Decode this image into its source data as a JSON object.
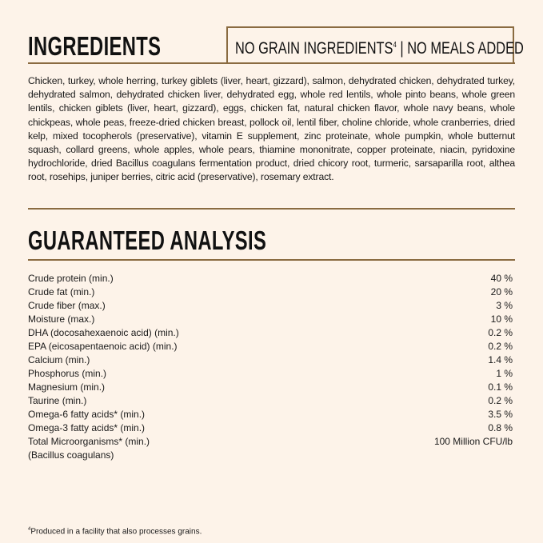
{
  "ingredients": {
    "title": "INGREDIENTS",
    "badge_text": "NO GRAIN INGREDIENTS",
    "badge_sup": "4",
    "badge_text2": " | NO MEALS ADDED",
    "text": "Chicken, turkey, whole herring, turkey giblets (liver, heart, gizzard), salmon, dehydrated chicken, dehydrated turkey, dehydrated salmon, dehydrated chicken liver, dehydrated egg, whole red lentils, whole pinto beans, whole green lentils, chicken giblets (liver, heart, gizzard), eggs, chicken fat, natural chicken flavor, whole navy beans, whole chickpeas, whole peas, freeze-dried chicken breast, pollock oil, lentil fiber, choline chloride, whole cranberries, dried kelp, mixed tocopherols (preservative), vitamin E supplement, zinc proteinate, whole pumpkin, whole butternut squash, collard greens, whole apples, whole pears, thiamine mononitrate, copper proteinate, niacin, pyridoxine hydrochloride, dried Bacillus coagulans fermentation product, dried chicory root, turmeric, sarsaparilla root, althea root, rosehips, juniper berries, citric acid (preservative), rosemary extract."
  },
  "analysis": {
    "title": "GUARANTEED ANALYSIS",
    "rows": [
      {
        "label": "Crude protein (min.)",
        "value": "40 %"
      },
      {
        "label": "Crude fat (min.)",
        "value": "20 %"
      },
      {
        "label": "Crude fiber (max.)",
        "value": "3 %"
      },
      {
        "label": "Moisture (max.)",
        "value": "10 %"
      },
      {
        "label": "DHA (docosahexaenoic acid) (min.)",
        "value": "0.2 %"
      },
      {
        "label": "EPA (eicosapentaenoic acid) (min.)",
        "value": "0.2 %"
      },
      {
        "label": "Calcium (min.)",
        "value": "1.4 %"
      },
      {
        "label": "Phosphorus (min.)",
        "value": "1 %"
      },
      {
        "label": "Magnesium (min.)",
        "value": "0.1 %"
      },
      {
        "label": "Taurine (min.)",
        "value": "0.2 %"
      },
      {
        "label": "Omega-6 fatty acids* (min.)",
        "value": "3.5 %"
      },
      {
        "label": "Omega-3 fatty acids* (min.)",
        "value": "0.8 %"
      },
      {
        "label": "Total Microorganisms* (min.)",
        "value": "100 Million CFU/lb"
      },
      {
        "label": "(Bacillus coagulans)",
        "value": ""
      }
    ]
  },
  "footnote": {
    "sup": "4",
    "text": "Produced in a facility that also processes grains."
  },
  "colors": {
    "background": "#fdf3e9",
    "accent": "#8a6b41"
  }
}
